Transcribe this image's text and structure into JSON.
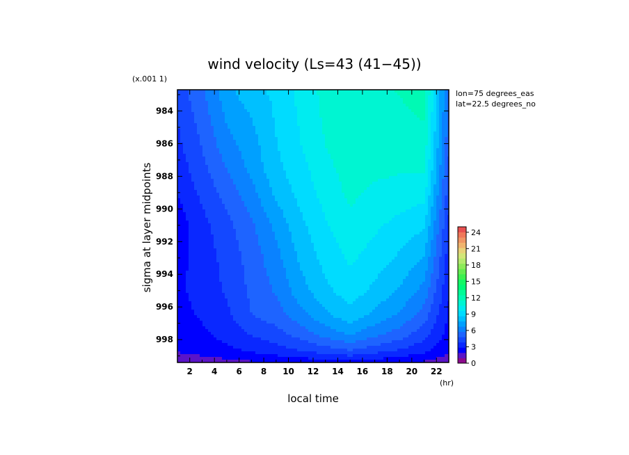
{
  "chart_data": {
    "type": "heatmap",
    "title": "wind velocity (Ls=43 (41−45))",
    "xlabel": "local time",
    "ylabel": "sigma at layer midpoints",
    "x_unit": "(hr)",
    "y_scale_note": "(x.001 1)",
    "annotations": [
      "lon=75 degrees_eas",
      "lat=22.5 degrees_no"
    ],
    "xlim": [
      1,
      23
    ],
    "ylim": [
      982.7,
      999.4
    ],
    "x_ticks": [
      2,
      4,
      6,
      8,
      10,
      12,
      14,
      16,
      18,
      20,
      22
    ],
    "y_ticks": [
      984,
      986,
      988,
      990,
      992,
      994,
      996,
      998
    ],
    "colorbar": {
      "min": 0,
      "max": 25,
      "ticks": [
        0,
        3,
        6,
        9,
        12,
        15,
        18,
        21,
        24
      ],
      "colors": [
        "#8c0a8c",
        "#5a14c8",
        "#0000ff",
        "#0a28ff",
        "#1448ff",
        "#1e64ff",
        "#0a82ff",
        "#00a0ff",
        "#00c0ff",
        "#00dcff",
        "#00ecf0",
        "#00f5d2",
        "#00fab4",
        "#00fc96",
        "#00fa78",
        "#14f864",
        "#3cf050",
        "#64ec50",
        "#8cea5a",
        "#b4ea6e",
        "#d2e678",
        "#e8d278",
        "#f0b46e",
        "#f09664",
        "#f0785a",
        "#e85050"
      ]
    },
    "x": [
      1,
      3,
      5,
      7,
      9,
      11,
      13,
      15,
      17,
      19,
      21,
      23
    ],
    "y": [
      982.7,
      984,
      986,
      987.5,
      989,
      991,
      993,
      995,
      996.5,
      997.7,
      998.7,
      999.4
    ],
    "z": [
      [
        4.3,
        5.6,
        7.3,
        8.5,
        8.8,
        9.9,
        10.9,
        11.3,
        11.3,
        11.6,
        12.0,
        5.5
      ],
      [
        4.0,
        5.3,
        7.0,
        7.8,
        8.8,
        9.8,
        10.8,
        11.2,
        11.2,
        11.4,
        11.7,
        5.3
      ],
      [
        3.6,
        4.9,
        6.4,
        7.3,
        8.6,
        9.6,
        10.6,
        11.2,
        11.0,
        11.0,
        11.2,
        5.0
      ],
      [
        3.3,
        4.5,
        5.8,
        7.0,
        8.4,
        9.3,
        10.3,
        11.0,
        10.8,
        10.7,
        10.7,
        4.6
      ],
      [
        2.9,
        4.1,
        5.2,
        6.4,
        7.9,
        9.0,
        10.0,
        10.8,
        10.4,
        10.2,
        10.0,
        4.2
      ],
      [
        2.3,
        3.5,
        4.5,
        5.6,
        7.0,
        8.4,
        9.5,
        10.3,
        9.8,
        9.3,
        8.8,
        3.7
      ],
      [
        2.6,
        3.3,
        4.2,
        5.2,
        6.4,
        7.9,
        9.0,
        9.8,
        9.2,
        8.5,
        7.6,
        3.3
      ],
      [
        2.7,
        3.2,
        4.0,
        5.0,
        5.9,
        7.3,
        8.4,
        9.2,
        8.4,
        7.6,
        6.4,
        3.0
      ],
      [
        2.6,
        3.0,
        3.6,
        4.8,
        5.3,
        6.4,
        7.5,
        8.3,
        7.4,
        6.6,
        5.3,
        2.7
      ],
      [
        2.4,
        2.7,
        3.2,
        3.9,
        4.4,
        5.2,
        6.1,
        6.8,
        6.0,
        5.3,
        4.2,
        2.5
      ],
      [
        2.0,
        2.3,
        2.6,
        3.0,
        3.4,
        3.8,
        4.3,
        4.7,
        4.2,
        3.7,
        3.1,
        2.1
      ],
      [
        1.2,
        1.4,
        1.6,
        1.8,
        2.0,
        2.2,
        2.4,
        2.6,
        2.3,
        2.1,
        1.8,
        1.3
      ]
    ]
  }
}
